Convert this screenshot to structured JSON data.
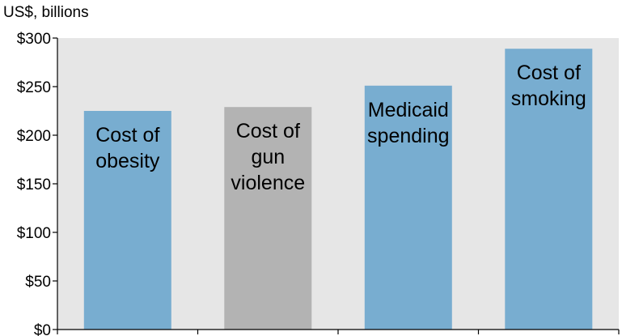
{
  "chart_data": {
    "type": "bar",
    "unit_label": "US$, billions",
    "categories": [
      "Cost of obesity",
      "Cost of gun violence",
      "Medicaid spending",
      "Cost of smoking"
    ],
    "category_label_lines": [
      [
        "Cost of",
        "obesity"
      ],
      [
        "Cost of",
        "gun",
        "violence"
      ],
      [
        "Medicaid",
        "spending"
      ],
      [
        "Cost of",
        "smoking"
      ]
    ],
    "values": [
      225,
      229,
      251,
      289
    ],
    "bar_colors": [
      "#78add0",
      "#b3b3b3",
      "#78add0",
      "#78add0"
    ],
    "plot_background": "#e6e6e6",
    "ylim": [
      0,
      300
    ],
    "y_ticks": [
      0,
      50,
      100,
      150,
      200,
      250,
      300
    ],
    "y_tick_labels": [
      "$0",
      "$50",
      "$100",
      "$150",
      "$200",
      "$250",
      "$300"
    ],
    "grid": false,
    "legend": "none"
  }
}
